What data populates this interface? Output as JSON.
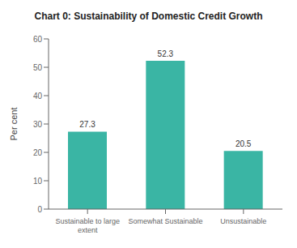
{
  "chart_data": {
    "type": "bar",
    "title": "Chart 0: Sustainability of Domestic Credit Growth",
    "categories": [
      "Sustainable to large\nextent",
      "Somewhat Sustainable",
      "Unsustainable"
    ],
    "values": [
      27.3,
      52.3,
      20.5
    ],
    "color": "#3ab5a4",
    "ylabel": "Per cent",
    "ylim": [
      0,
      60
    ],
    "yticks": [
      0,
      10,
      20,
      30,
      40,
      50,
      60
    ],
    "grid": false,
    "data_labels": true
  }
}
